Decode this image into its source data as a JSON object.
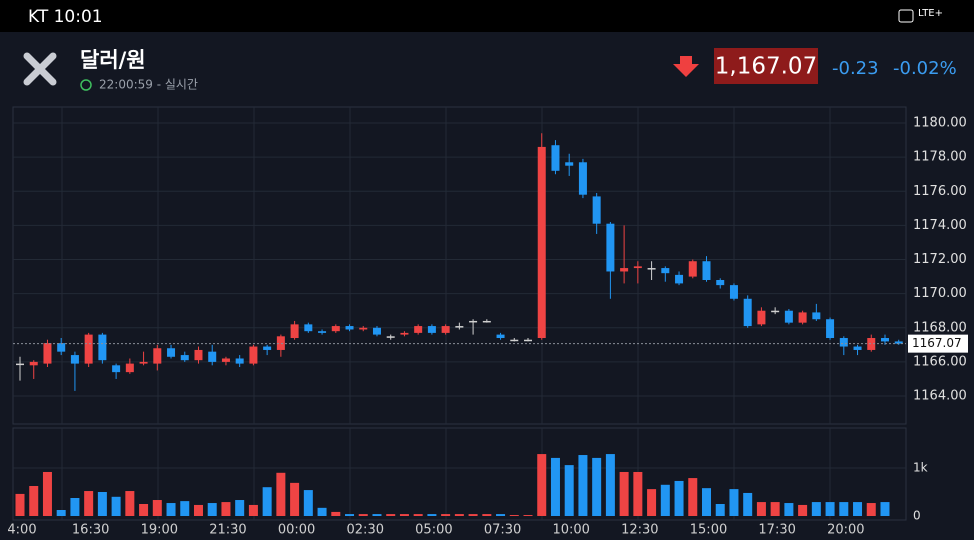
{
  "status_bar": {
    "carrier_time": "KT 10:01",
    "network": "LTE+"
  },
  "header": {
    "title": "달러/원",
    "subtitle": "22:00:59 - 실시간",
    "price": "1,167.07",
    "change": "-0.23",
    "change_percent": "-0.02%"
  },
  "chart_data": [
    {
      "type": "candlestick",
      "categories": [
        "4:00",
        null,
        null,
        null,
        null,
        "16:30",
        null,
        null,
        null,
        null,
        "19:00",
        null,
        null,
        null,
        null,
        "21:30",
        null,
        null,
        null,
        null,
        "00:00",
        null,
        null,
        null,
        null,
        "02:30",
        null,
        null,
        null,
        null,
        "05:00",
        null,
        null,
        null,
        null,
        "07:30",
        null,
        null,
        null,
        null,
        "10:00",
        null,
        null,
        null,
        null,
        "12:30",
        null,
        null,
        null,
        null,
        "15:00",
        null,
        null,
        null,
        null,
        "17:30",
        null,
        null,
        null,
        null,
        "20:00",
        null,
        null,
        null,
        null
      ],
      "open": [
        1165.9,
        1165.8,
        1165.9,
        1167.1,
        1166.4,
        1165.9,
        1167.6,
        1165.8,
        1165.4,
        1165.9,
        1165.9,
        1166.8,
        1166.4,
        1166.1,
        1166.6,
        1166.0,
        1166.2,
        1165.9,
        1166.9,
        1166.7,
        1167.4,
        1168.2,
        1167.8,
        1167.8,
        1168.1,
        1167.9,
        1168.0,
        1167.5,
        1167.6,
        1167.7,
        1168.1,
        1167.7,
        1168.1,
        1168.4,
        1168.4,
        1167.6,
        1167.3,
        1167.3,
        1167.4,
        1178.7,
        1177.7,
        1177.7,
        1175.7,
        1174.1,
        1171.3,
        1171.5,
        1171.5,
        1171.5,
        1171.1,
        1171.0,
        1171.9,
        1170.8,
        1170.5,
        1169.7,
        1168.2,
        1169.0,
        1169.0,
        1168.3,
        1168.9,
        1168.5,
        1167.4,
        1166.9,
        1166.7,
        1167.4,
        1167.2
      ],
      "high": [
        1166.3,
        1166.1,
        1167.3,
        1167.4,
        1166.6,
        1167.7,
        1167.7,
        1165.9,
        1166.2,
        1166.6,
        1167.0,
        1167.0,
        1166.6,
        1166.9,
        1167.0,
        1166.3,
        1166.4,
        1167.0,
        1167.0,
        1167.6,
        1168.4,
        1168.3,
        1167.9,
        1168.2,
        1168.2,
        1168.1,
        1168.1,
        1167.6,
        1167.8,
        1168.2,
        1168.2,
        1168.2,
        1168.3,
        1168.5,
        1168.5,
        1167.7,
        1167.4,
        1167.4,
        1179.4,
        1179.0,
        1178.2,
        1177.9,
        1175.9,
        1174.2,
        1174.0,
        1171.9,
        1171.9,
        1171.6,
        1171.3,
        1172.0,
        1172.2,
        1170.9,
        1170.6,
        1169.9,
        1169.2,
        1169.2,
        1169.1,
        1169.0,
        1169.4,
        1168.6,
        1167.5,
        1167.0,
        1167.6,
        1167.6,
        1167.3
      ],
      "low": [
        1164.9,
        1165.0,
        1165.7,
        1166.4,
        1164.3,
        1165.7,
        1165.9,
        1165.0,
        1165.3,
        1165.8,
        1165.5,
        1166.2,
        1166.0,
        1165.9,
        1165.8,
        1165.8,
        1165.7,
        1165.8,
        1166.4,
        1166.3,
        1167.3,
        1167.7,
        1167.6,
        1167.7,
        1167.8,
        1167.8,
        1167.5,
        1167.3,
        1167.5,
        1167.6,
        1167.6,
        1167.6,
        1167.9,
        1167.6,
        1168.3,
        1167.3,
        1167.2,
        1167.2,
        1167.3,
        1177.0,
        1176.9,
        1175.6,
        1173.5,
        1169.7,
        1170.6,
        1170.6,
        1170.8,
        1170.7,
        1170.5,
        1170.9,
        1170.7,
        1170.3,
        1169.6,
        1168.0,
        1168.1,
        1168.8,
        1168.2,
        1168.2,
        1168.4,
        1167.3,
        1166.4,
        1166.4,
        1166.6,
        1167.0,
        1167.0
      ],
      "close": [
        1165.9,
        1166.0,
        1167.1,
        1166.6,
        1165.9,
        1167.6,
        1166.1,
        1165.4,
        1165.9,
        1166.0,
        1166.8,
        1166.3,
        1166.1,
        1166.7,
        1166.0,
        1166.2,
        1165.9,
        1166.9,
        1166.7,
        1167.5,
        1168.2,
        1167.8,
        1167.7,
        1168.1,
        1167.9,
        1168.0,
        1167.6,
        1167.5,
        1167.7,
        1168.1,
        1167.7,
        1168.1,
        1168.1,
        1168.4,
        1168.4,
        1167.4,
        1167.3,
        1167.3,
        1178.6,
        1177.2,
        1177.5,
        1175.8,
        1174.1,
        1171.3,
        1171.5,
        1171.6,
        1171.5,
        1171.2,
        1170.6,
        1171.9,
        1170.8,
        1170.5,
        1169.7,
        1168.1,
        1169.0,
        1169.0,
        1168.3,
        1168.9,
        1168.5,
        1167.4,
        1166.9,
        1166.7,
        1167.4,
        1167.2,
        1167.07
      ],
      "ylim": [
        1162.36,
        1180.94
      ],
      "yticks": [
        {
          "value": 1164,
          "label": "1164.00"
        },
        {
          "value": 1166,
          "label": "1166.00"
        },
        {
          "value": 1168,
          "label": "1168.00"
        },
        {
          "value": 1170,
          "label": "1170.00"
        },
        {
          "value": 1172,
          "label": "1172.00"
        },
        {
          "value": 1174,
          "label": "1174.00"
        },
        {
          "value": 1176,
          "label": "1176.00"
        },
        {
          "value": 1178,
          "label": "1178.00"
        },
        {
          "value": 1180,
          "label": "1180.00"
        }
      ],
      "current_price": 1167.07,
      "up_color": "#ef4444",
      "down_color": "#2196f3",
      "grid": true
    },
    {
      "type": "bar",
      "values": [
        460,
        625,
        917,
        125,
        375,
        520,
        500,
        400,
        520,
        250,
        333,
        270,
        310,
        230,
        270,
        290,
        333,
        230,
        600,
        900,
        690,
        540,
        170,
        85,
        40,
        40,
        40,
        40,
        40,
        40,
        40,
        40,
        40,
        40,
        40,
        40,
        20,
        20,
        1290,
        1210,
        1060,
        1270,
        1210,
        1290,
        917,
        917,
        560,
        650,
        730,
        790,
        580,
        250,
        560,
        480,
        290,
        290,
        270,
        230,
        290,
        290,
        290,
        290,
        270,
        290,
        null
      ],
      "ylim": [
        0,
        1833
      ],
      "yticks": [
        0,
        {
          "value": 1000,
          "label": "1k"
        }
      ],
      "grid": true
    }
  ]
}
